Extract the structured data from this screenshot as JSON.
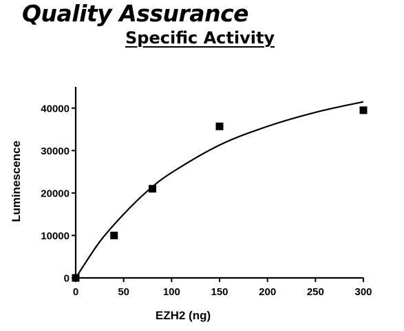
{
  "header": {
    "title": "Quality Assurance",
    "subtitle": "Specific Activity"
  },
  "chart_data": {
    "type": "scatter",
    "title": "Specific Activity",
    "xlabel": "EZH2 (ng)",
    "ylabel": "Luminescence",
    "xlim": [
      0,
      300
    ],
    "ylim": [
      0,
      45000
    ],
    "x_ticks": [
      0,
      50,
      100,
      150,
      200,
      250,
      300
    ],
    "y_ticks": [
      0,
      10000,
      20000,
      30000,
      40000
    ],
    "grid": false,
    "series": [
      {
        "marker": "square",
        "color": "#000000",
        "points": [
          {
            "x": 0,
            "y": 0
          },
          {
            "x": 40,
            "y": 10000
          },
          {
            "x": 80,
            "y": 21000
          },
          {
            "x": 150,
            "y": 35700
          },
          {
            "x": 300,
            "y": 39500
          }
        ]
      }
    ],
    "fit_curve": {
      "color": "#000000",
      "points": [
        {
          "x": 0,
          "y": 0
        },
        {
          "x": 25,
          "y": 8500
        },
        {
          "x": 50,
          "y": 15000
        },
        {
          "x": 75,
          "y": 20500
        },
        {
          "x": 100,
          "y": 24800
        },
        {
          "x": 150,
          "y": 31300
        },
        {
          "x": 200,
          "y": 35700
        },
        {
          "x": 250,
          "y": 39000
        },
        {
          "x": 300,
          "y": 41500
        }
      ]
    }
  }
}
